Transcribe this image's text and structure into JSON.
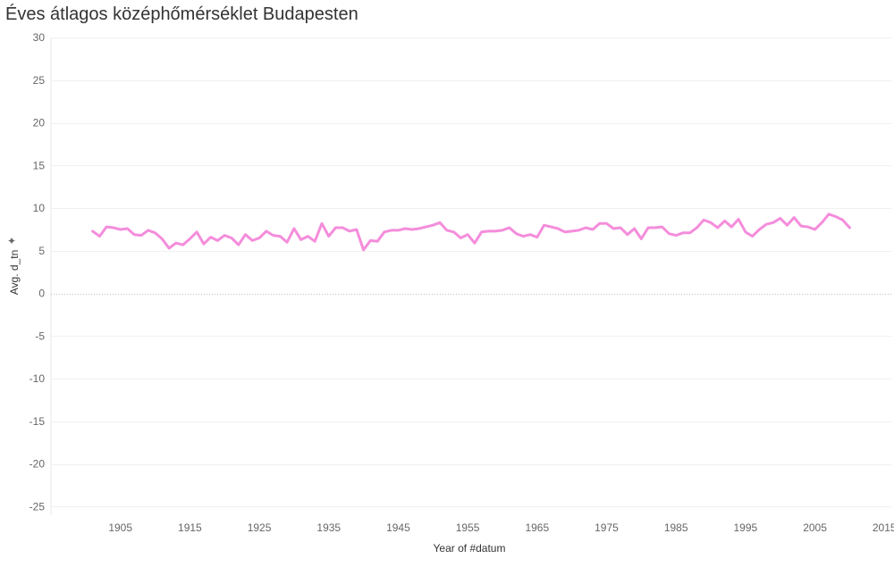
{
  "chart_data": {
    "type": "line",
    "title": "Éves átlagos középhőmérséklet Budapesten",
    "xlabel": "Year of #datum",
    "ylabel": "Avg. d_tn",
    "xlim": [
      1895,
      2016
    ],
    "ylim": [
      -26,
      30
    ],
    "xticks": [
      1905,
      1915,
      1925,
      1935,
      1945,
      1955,
      1965,
      1975,
      1985,
      1995,
      2005,
      2015
    ],
    "yticks": [
      30,
      25,
      20,
      15,
      10,
      5,
      0,
      -5,
      -10,
      -15,
      -20,
      -25
    ],
    "grid": true,
    "zero_line": "dotted",
    "series": [
      {
        "color": "#f48ddb",
        "x": [
          1901,
          1902,
          1903,
          1904,
          1905,
          1906,
          1907,
          1908,
          1909,
          1910,
          1911,
          1912,
          1913,
          1914,
          1915,
          1916,
          1917,
          1918,
          1919,
          1920,
          1921,
          1922,
          1923,
          1924,
          1925,
          1926,
          1927,
          1928,
          1929,
          1930,
          1931,
          1932,
          1933,
          1934,
          1935,
          1936,
          1937,
          1938,
          1939,
          1940,
          1941,
          1942,
          1943,
          1944,
          1945,
          1946,
          1947,
          1948,
          1949,
          1950,
          1951,
          1952,
          1953,
          1954,
          1955,
          1956,
          1957,
          1958,
          1959,
          1960,
          1961,
          1962,
          1963,
          1964,
          1965,
          1966,
          1967,
          1968,
          1969,
          1970,
          1971,
          1972,
          1973,
          1974,
          1975,
          1976,
          1977,
          1978,
          1979,
          1980,
          1981,
          1982,
          1983,
          1984,
          1985,
          1986,
          1987,
          1988,
          1989,
          1990,
          1991,
          1992,
          1993,
          1994,
          1995,
          1996,
          1997,
          1998,
          1999,
          2000,
          2001,
          2002,
          2003,
          2004,
          2005,
          2006,
          2007,
          2008,
          2009,
          2010
        ],
        "y": [
          7.3,
          6.7,
          7.8,
          7.7,
          7.5,
          7.6,
          6.9,
          6.8,
          7.4,
          7.1,
          6.4,
          5.3,
          5.9,
          5.7,
          6.4,
          7.2,
          5.8,
          6.6,
          6.2,
          6.8,
          6.5,
          5.7,
          6.9,
          6.2,
          6.5,
          7.3,
          6.8,
          6.7,
          6.0,
          7.6,
          6.3,
          6.7,
          6.1,
          8.2,
          6.7,
          7.7,
          7.7,
          7.3,
          7.5,
          5.1,
          6.2,
          6.1,
          7.2,
          7.4,
          7.4,
          7.6,
          7.5,
          7.6,
          7.8,
          8.0,
          8.3,
          7.4,
          7.2,
          6.5,
          6.9,
          5.9,
          7.2,
          7.3,
          7.3,
          7.4,
          7.7,
          7.0,
          6.7,
          6.9,
          6.6,
          8.0,
          7.8,
          7.6,
          7.2,
          7.3,
          7.4,
          7.7,
          7.5,
          8.2,
          8.2,
          7.6,
          7.7,
          6.9,
          7.6,
          6.4,
          7.7,
          7.7,
          7.8,
          7.0,
          6.8,
          7.1,
          7.1,
          7.7,
          8.6,
          8.3,
          7.7,
          8.5,
          7.8,
          8.7,
          7.2,
          6.7,
          7.5,
          8.1,
          8.3,
          8.8,
          8.0,
          8.9,
          7.9,
          7.8,
          7.5,
          8.3,
          9.3,
          9.0,
          8.6,
          7.7
        ]
      }
    ]
  }
}
